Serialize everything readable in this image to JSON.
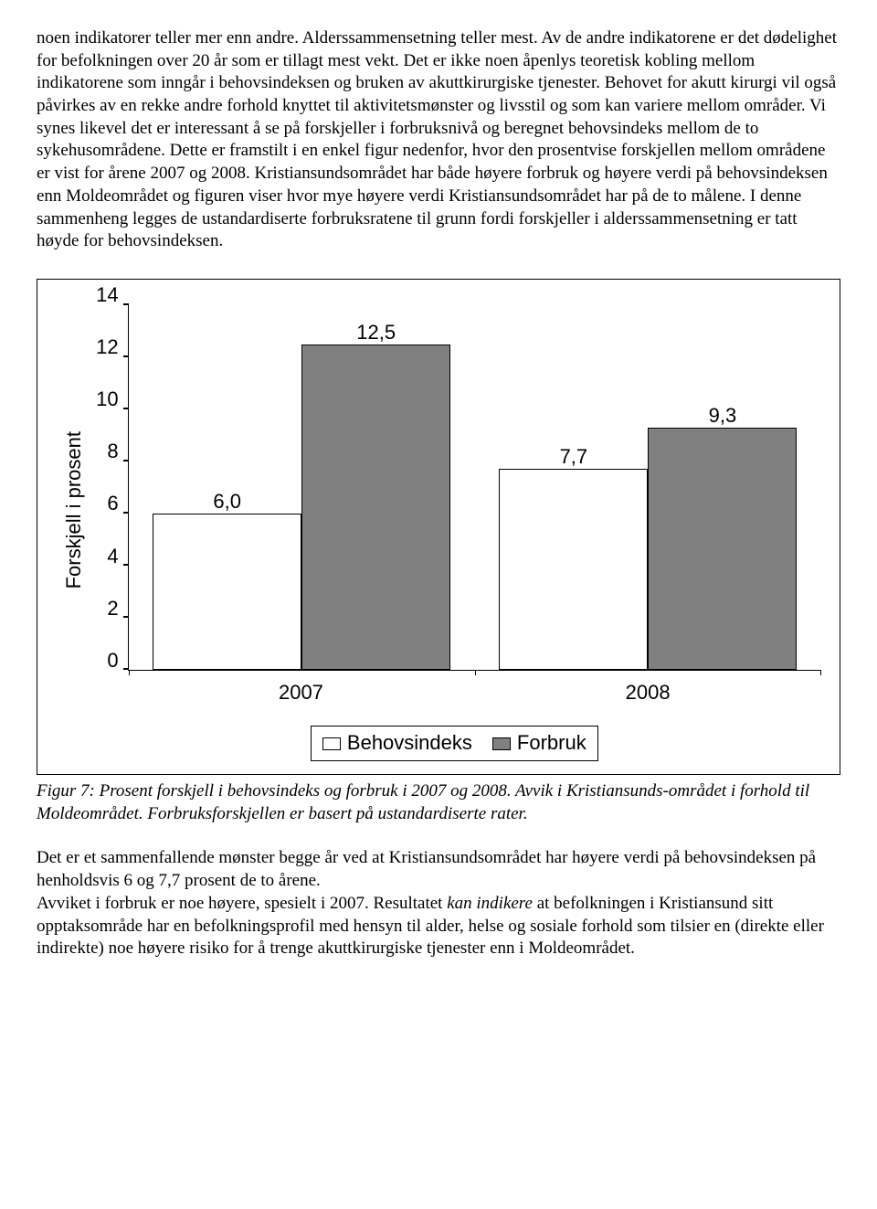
{
  "paragraph1": "noen indikatorer teller mer enn andre. Alderssammensetning teller mest. Av de andre indikatorene er det dødelighet for befolkningen over 20 år som er tillagt mest vekt. Det er ikke noen åpenlys teoretisk kobling mellom indikatorene som inngår i behovsindeksen og bruken av akuttkirurgiske tjenester. Behovet for akutt kirurgi vil også påvirkes av en rekke andre forhold knyttet til aktivitetsmønster og livsstil og som kan variere mellom områder. Vi synes likevel det er interessant å se på forskjeller i forbruksnivå og beregnet behovsindeks mellom de to sykehusområdene. Dette er framstilt i en enkel figur nedenfor, hvor den prosentvise forskjellen mellom områdene er vist for årene 2007 og 2008. Kristiansundsområdet har både høyere forbruk og høyere verdi på behovsindeksen enn Moldeområdet og figuren viser hvor mye høyere verdi Kristiansundsområdet har på de to målene.  I denne sammenheng legges de ustandardiserte forbruksratene til grunn fordi forskjeller i alderssammensetning er tatt høyde for behovsindeksen.",
  "chart": {
    "type": "bar",
    "ylabel": "Forskjell i prosent",
    "ylim": [
      0,
      14
    ],
    "ytick_step": 2,
    "yticks": [
      "0",
      "2",
      "4",
      "6",
      "8",
      "10",
      "12",
      "14"
    ],
    "categories": [
      "2007",
      "2008"
    ],
    "series": [
      {
        "name": "Behovsindeks",
        "color": "#ffffff",
        "border": "#000000",
        "values": [
          6.0,
          7.7
        ],
        "labels": [
          "6,0",
          "7,7"
        ]
      },
      {
        "name": "Forbruk",
        "color": "#808080",
        "border": "#000000",
        "values": [
          12.5,
          9.3
        ],
        "labels": [
          "12,5",
          "9,3"
        ]
      }
    ],
    "legend": [
      "Behovsindeks",
      "Forbruk"
    ],
    "plot_border_color": "#000000",
    "font_family": "Arial",
    "label_fontsize": 22
  },
  "caption": "Figur 7: Prosent forskjell i behovsindeks og forbruk i 2007 og 2008. Avvik i Kristiansunds-området i forhold til Moldeområdet. Forbruksforskjellen er basert på ustandardiserte rater.",
  "paragraph2_part1": "Det er et sammenfallende mønster begge år ved at Kristiansundsområdet har høyere verdi på behovsindeksen på henholdsvis 6 og 7,7 prosent de to årene.",
  "paragraph2_part2a": "Avviket i forbruk er noe høyere, spesielt i 2007. Resultatet ",
  "paragraph2_italic": "kan indikere",
  "paragraph2_part2b": " at befolkningen i Kristiansund sitt opptaksområde har en befolkningsprofil med hensyn til alder, helse og sosiale forhold som tilsier en (direkte eller indirekte) noe høyere risiko for å trenge akuttkirurgiske tjenester enn i Moldeområdet."
}
